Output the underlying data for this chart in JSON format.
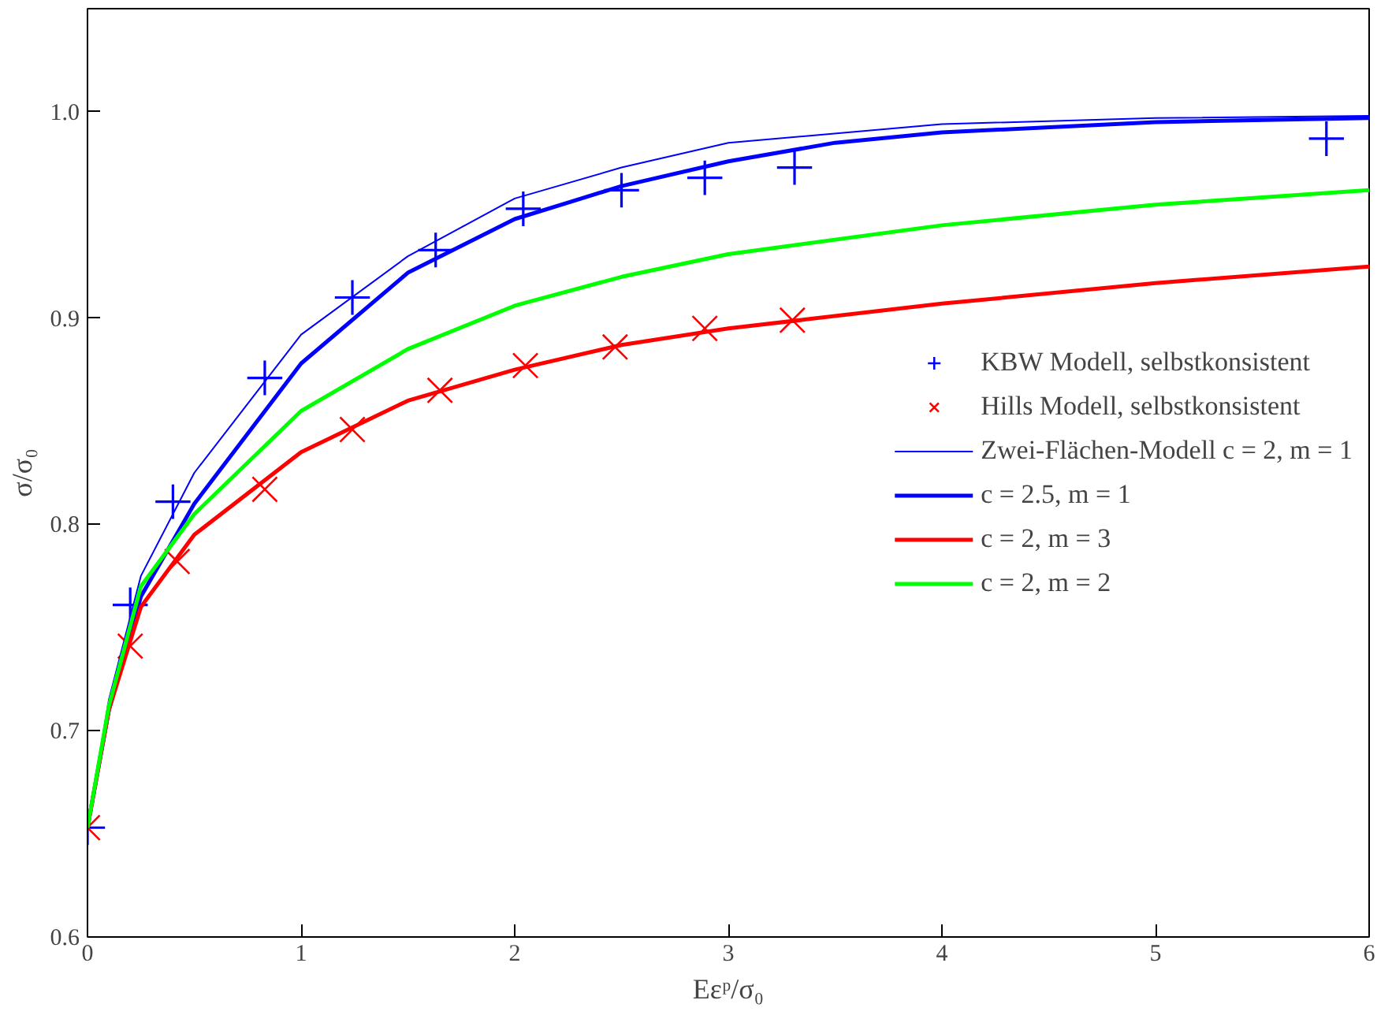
{
  "chart_data": {
    "type": "line",
    "xlabel": "Eεᵖ/σ₀",
    "ylabel": "σ/σ₀",
    "xlim": [
      0,
      6
    ],
    "ylim": [
      0.6,
      1.05
    ],
    "xticks": [
      0,
      1,
      2,
      3,
      4,
      5,
      6
    ],
    "yticks": [
      {
        "value": 0.6,
        "label": "0.6"
      },
      {
        "value": 0.7,
        "label": "0.7"
      },
      {
        "value": 0.8,
        "label": "0.8"
      },
      {
        "value": 0.9,
        "label": "0.9"
      },
      {
        "value": 1.0,
        "label": "1.0"
      }
    ],
    "grid": false,
    "legend": "right",
    "series": [
      {
        "name": "KBW Modell, selbstkonsistent",
        "type": "scatter",
        "marker": "cross",
        "color": "#0000ff",
        "x": [
          0,
          0.2,
          0.4,
          0.83,
          1.24,
          1.63,
          2.04,
          2.5,
          2.89,
          3.31,
          5.8
        ],
        "values": [
          0.653,
          0.761,
          0.811,
          0.871,
          0.91,
          0.933,
          0.953,
          0.962,
          0.968,
          0.973,
          0.987
        ]
      },
      {
        "name": "Hills Modell, selbstkonsistent",
        "type": "scatter",
        "marker": "x",
        "color": "#ff0000",
        "x": [
          0,
          0.2,
          0.42,
          0.83,
          1.24,
          1.65,
          2.05,
          2.47,
          2.89,
          3.3
        ],
        "values": [
          0.653,
          0.741,
          0.782,
          0.817,
          0.846,
          0.865,
          0.877,
          0.886,
          0.895,
          0.899
        ]
      },
      {
        "name": "Zwei-Flächen-Modell c = 2, m = 1",
        "color": "#0000ff",
        "x": [
          0,
          0.1,
          0.25,
          0.5,
          1,
          1.5,
          2,
          2.5,
          3,
          4,
          5,
          6
        ],
        "values": [
          0.653,
          0.715,
          0.775,
          0.825,
          0.892,
          0.93,
          0.958,
          0.973,
          0.985,
          0.994,
          0.997,
          0.998
        ]
      },
      {
        "name": "c = 2.5, m = 1",
        "color": "#0000ff",
        "x": [
          0,
          0.1,
          0.25,
          0.5,
          1,
          1.5,
          2,
          2.5,
          3,
          3.5,
          4,
          5,
          6
        ],
        "values": [
          0.653,
          0.71,
          0.765,
          0.81,
          0.878,
          0.922,
          0.948,
          0.964,
          0.976,
          0.985,
          0.99,
          0.995,
          0.997
        ]
      },
      {
        "name": "c = 2, m = 3",
        "color": "#ff0000",
        "x": [
          0,
          0.1,
          0.25,
          0.5,
          1,
          1.5,
          2,
          2.5,
          3,
          4,
          5,
          6
        ],
        "values": [
          0.653,
          0.71,
          0.76,
          0.795,
          0.835,
          0.86,
          0.875,
          0.887,
          0.895,
          0.907,
          0.917,
          0.925
        ]
      },
      {
        "name": "c = 2, m = 2",
        "color": "#00ff00",
        "x": [
          0,
          0.1,
          0.25,
          0.5,
          1,
          1.5,
          2,
          2.5,
          3,
          4,
          5,
          6
        ],
        "values": [
          0.653,
          0.712,
          0.77,
          0.805,
          0.855,
          0.885,
          0.906,
          0.92,
          0.931,
          0.945,
          0.955,
          0.962
        ]
      }
    ]
  }
}
